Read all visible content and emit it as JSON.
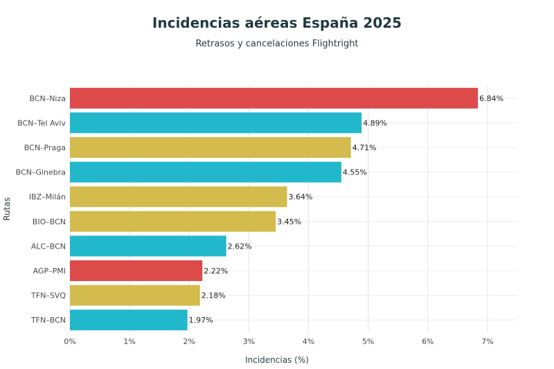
{
  "header": {
    "title": "Incidencias aéreas España 2025",
    "subtitle": "Retrasos y cancelaciones Flightright"
  },
  "chart_data": {
    "type": "bar",
    "orientation": "horizontal",
    "title": "Incidencias aéreas España 2025",
    "subtitle": "Retrasos y cancelaciones Flightright",
    "xlabel": "Incidencias (%)",
    "ylabel": "Rutas",
    "xlim": [
      0,
      7.5
    ],
    "xticks": [
      0,
      1,
      2,
      3,
      4,
      5,
      6,
      7
    ],
    "xtick_labels": [
      "0%",
      "1%",
      "2%",
      "3%",
      "4%",
      "5%",
      "6%",
      "7%"
    ],
    "grid": true,
    "categories": [
      "BCN–Niza",
      "BCN–Tel Aviv",
      "BCN–Praga",
      "BCN–Ginebra",
      "IBZ–Milán",
      "BIO–BCN",
      "ALC–BCN",
      "AGP–PMI",
      "TFN–SVQ",
      "TFN–BCN"
    ],
    "values": [
      6.84,
      4.89,
      4.71,
      4.55,
      3.64,
      3.45,
      2.62,
      2.22,
      2.18,
      1.97
    ],
    "value_labels": [
      "6.84%",
      "4.89%",
      "4.71%",
      "4.55%",
      "3.64%",
      "3.45%",
      "2.62%",
      "2.22%",
      "2.18%",
      "1.97%"
    ],
    "colors": [
      "#dc4a4a",
      "#22b8cc",
      "#d4bb4e",
      "#22b8cc",
      "#d4bb4e",
      "#d4bb4e",
      "#22b8cc",
      "#dc4a4a",
      "#d4bb4e",
      "#22b8cc"
    ]
  }
}
